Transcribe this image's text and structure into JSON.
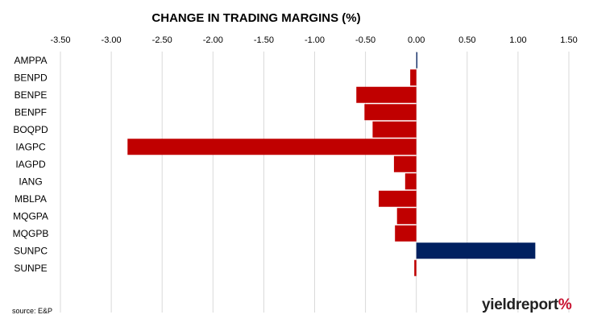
{
  "chart_data": {
    "type": "bar",
    "orientation": "horizontal",
    "title": "CHANGE IN TRADING MARGINS (%)",
    "xlim": [
      -3.5,
      1.5
    ],
    "x_ticks": [
      "-3.50",
      "-3.00",
      "-2.50",
      "-2.00",
      "-1.50",
      "-1.00",
      "-0.50",
      "0.00",
      "0.50",
      "1.00",
      "1.50"
    ],
    "x_tick_values": [
      -3.5,
      -3.0,
      -2.5,
      -2.0,
      -1.5,
      -1.0,
      -0.5,
      0.0,
      0.5,
      1.0,
      1.5
    ],
    "grid": true,
    "categories": [
      "AMPPA",
      "BENPD",
      "BENPE",
      "BENPF",
      "BOQPD",
      "IAGPC",
      "IAGPD",
      "IANG",
      "MBLPA",
      "MQGPA",
      "MQGPB",
      "SUNPC",
      "SUNPE"
    ],
    "values": [
      0.01,
      -0.06,
      -0.59,
      -0.51,
      -0.43,
      -2.84,
      -0.22,
      -0.11,
      -0.37,
      -0.19,
      -0.21,
      1.17,
      -0.02
    ],
    "colors": {
      "negative": "#c00000",
      "positive": "#002060"
    }
  },
  "source": "source: E&P",
  "logo": {
    "part1": "yield",
    "part2": "report",
    "part3": "%"
  }
}
